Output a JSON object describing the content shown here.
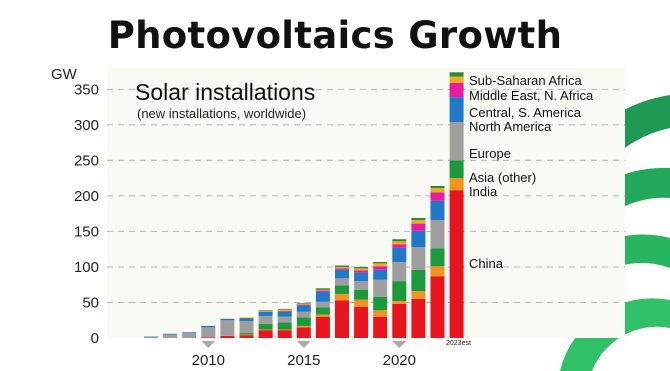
{
  "page": {
    "headline": "Photovoltaics Growth"
  },
  "chart_data": {
    "type": "bar",
    "stacked": true,
    "title": "Solar installations",
    "subtitle": "(new installations, worldwide)",
    "ylabel": "GW",
    "ylim": [
      0,
      380
    ],
    "yticks": [
      0,
      50,
      100,
      150,
      200,
      250,
      300,
      350
    ],
    "grid": true,
    "legend_position": "right",
    "x": [
      2007,
      2008,
      2009,
      2010,
      2011,
      2012,
      2013,
      2014,
      2015,
      2016,
      2017,
      2018,
      2019,
      2020,
      2021,
      2022,
      2023
    ],
    "x_tick_labels": [
      "2010",
      "2015",
      "2020"
    ],
    "x_tick_years": [
      2010,
      2015,
      2020
    ],
    "last_bar_label": "2023est",
    "series": [
      {
        "name": "China",
        "color": "#e8141e",
        "values": [
          0,
          0,
          0,
          1,
          3,
          4,
          11,
          11,
          15,
          30,
          53,
          44,
          30,
          48,
          55,
          87,
          208
        ]
      },
      {
        "name": "India",
        "color": "#f6921e",
        "values": [
          0,
          0,
          0,
          0,
          0,
          1,
          1,
          1,
          2,
          3,
          9,
          10,
          9,
          4,
          11,
          14,
          17
        ]
      },
      {
        "name": "Asia (other)",
        "color": "#1a9a3a",
        "values": [
          0,
          0,
          0,
          0,
          0,
          2,
          8,
          10,
          12,
          10,
          12,
          14,
          19,
          28,
          30,
          25,
          25
        ]
      },
      {
        "name": "Europe",
        "color": "#9e9e9e",
        "values": [
          1,
          5,
          7,
          14,
          22,
          17,
          11,
          8,
          8,
          8,
          10,
          12,
          24,
          27,
          32,
          40,
          54
        ]
      },
      {
        "name": "North America",
        "color": "#1f78c8",
        "values": [
          1,
          1,
          1,
          2,
          2,
          4,
          6,
          7,
          9,
          14,
          12,
          12,
          14,
          20,
          23,
          27,
          35
        ]
      },
      {
        "name": "Central, S. America",
        "color": "#e81c9e",
        "values": [
          0,
          0,
          0,
          0,
          0,
          0,
          0,
          1,
          1,
          2,
          2,
          3,
          5,
          5,
          10,
          12,
          20
        ]
      },
      {
        "name": "Middle East, N. Africa",
        "color": "#f2ab1e",
        "values": [
          0,
          0,
          0,
          0,
          0,
          1,
          1,
          2,
          1,
          1,
          2,
          3,
          4,
          4,
          5,
          6,
          9
        ]
      },
      {
        "name": "Sub-Saharan Africa",
        "color": "#2a8a3a",
        "values": [
          0,
          0,
          0,
          0,
          0,
          0,
          1,
          1,
          1,
          2,
          2,
          2,
          2,
          3,
          3,
          3,
          6
        ]
      }
    ]
  }
}
